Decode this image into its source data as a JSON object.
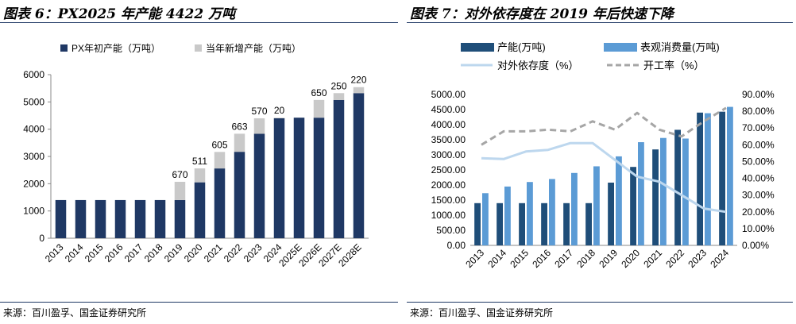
{
  "left": {
    "title": "图表 6：PX2025 年产能 4422 万吨",
    "source": "来源：百川盈孚、国金证券研究所",
    "chart_data": {
      "type": "bar",
      "stacked": true,
      "categories": [
        "2013",
        "2014",
        "2015",
        "2016",
        "2017",
        "2018",
        "2019",
        "2020",
        "2021",
        "2022",
        "2023",
        "2024",
        "2025E",
        "2026E",
        "2027E",
        "2028E"
      ],
      "series": [
        {
          "name": "PX年初产能（万吨）",
          "color": "#1f3864",
          "values": [
            1400,
            1400,
            1400,
            1400,
            1400,
            1400,
            1400,
            2050,
            2560,
            3170,
            3830,
            4400,
            4422,
            4422,
            5072,
            5322
          ]
        },
        {
          "name": "当年新增产能（万吨）",
          "color": "#c9c9c9",
          "values": [
            0,
            0,
            0,
            0,
            0,
            0,
            670,
            511,
            605,
            663,
            570,
            20,
            0,
            650,
            250,
            220
          ]
        }
      ],
      "data_labels": [
        "",
        "",
        "",
        "",
        "",
        "",
        "670",
        "511",
        "605",
        "663",
        "570",
        "20",
        "",
        "650",
        "250",
        "220"
      ],
      "ylim": [
        0,
        6000
      ],
      "yticks": [
        "0",
        "1000",
        "2000",
        "3000",
        "4000",
        "5000",
        "6000"
      ],
      "legend_position": "top"
    }
  },
  "right": {
    "title": "图表 7：对外依存度在 2019 年后快速下降",
    "source": "来源：百川盈孚、国金证券研究所",
    "chart_data": {
      "type": "bar+line",
      "categories": [
        "2013",
        "2014",
        "2015",
        "2016",
        "2017",
        "2018",
        "2019",
        "2020",
        "2021",
        "2022",
        "2023",
        "2024"
      ],
      "bars": [
        {
          "name": "产能(万吨)",
          "color": "#1f4e79",
          "values": [
            1400,
            1400,
            1400,
            1400,
            1400,
            1400,
            2080,
            2600,
            3180,
            3830,
            4400,
            4430
          ]
        },
        {
          "name": "表观消费量(万吨)",
          "color": "#5b9bd5",
          "values": [
            1730,
            1950,
            2100,
            2200,
            2400,
            2620,
            2950,
            3420,
            3560,
            3540,
            4380,
            4590
          ]
        }
      ],
      "lines": [
        {
          "name": "对外依存度（%）",
          "color": "#bdd7ee",
          "dashed": false,
          "values": [
            52,
            51.5,
            56,
            57,
            61,
            61,
            51,
            41,
            38,
            30,
            22,
            20
          ]
        },
        {
          "name": "开工率（%）",
          "color": "#a6a6a6",
          "dashed": true,
          "values": [
            60,
            68,
            68,
            69,
            68,
            74,
            69,
            79,
            69,
            65,
            74,
            82
          ]
        }
      ],
      "ylim_left": [
        0,
        5000
      ],
      "yticks_left": [
        "0.00",
        "500.00",
        "1000.00",
        "1500.00",
        "2000.00",
        "2500.00",
        "3000.00",
        "3500.00",
        "4000.00",
        "4500.00",
        "5000.00"
      ],
      "ylim_right": [
        0,
        90
      ],
      "yticks_right": [
        "0.00%",
        "10.00%",
        "20.00%",
        "30.00%",
        "40.00%",
        "50.00%",
        "60.00%",
        "70.00%",
        "80.00%",
        "90.00%"
      ],
      "legend_position": "top"
    }
  }
}
